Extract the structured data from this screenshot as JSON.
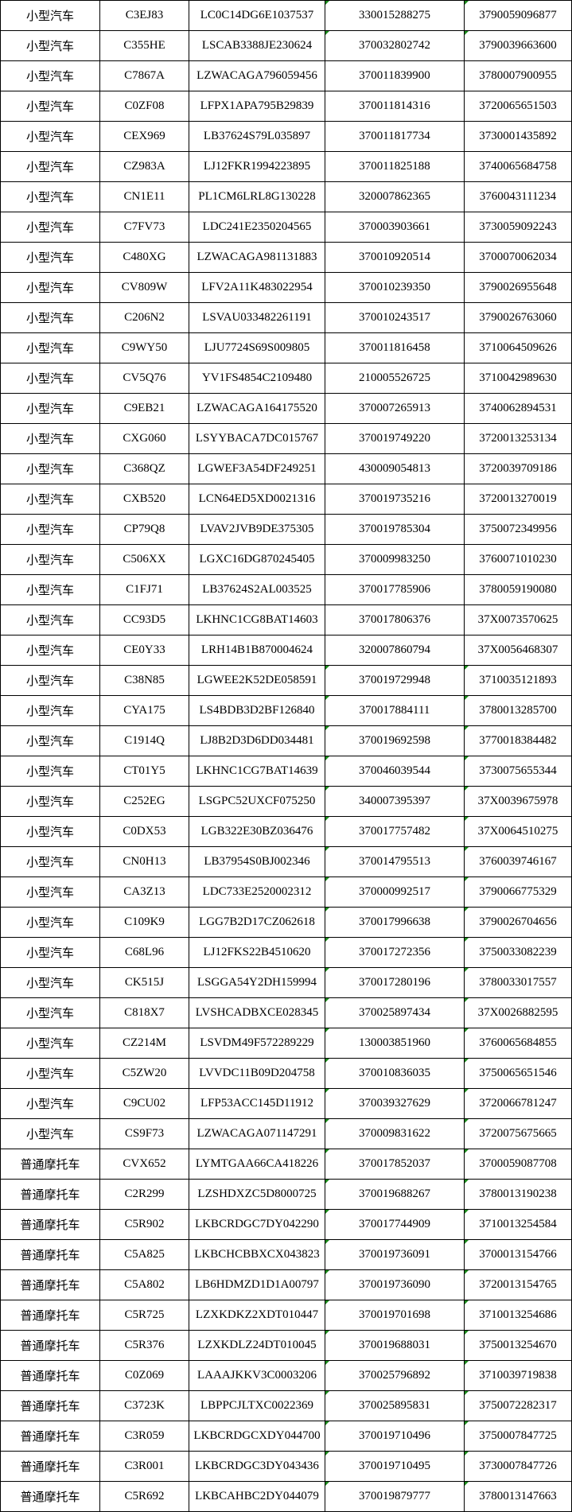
{
  "table": {
    "flag_color": "#1a8a1a",
    "rows": [
      {
        "type": "小型汽车",
        "plate": "C3EJ83",
        "vin": "LC0C14DG6E1037537",
        "id1": "330015288275",
        "id2": "3790059096877",
        "flag": true
      },
      {
        "type": "小型汽车",
        "plate": "C355HE",
        "vin": "LSCAB3388JE230624",
        "id1": "370032802742",
        "id2": "3790039663600",
        "flag": true
      },
      {
        "type": "小型汽车",
        "plate": "C7867A",
        "vin": "LZWACAGA796059456",
        "id1": "370011839900",
        "id2": "3780007900955",
        "flag": false
      },
      {
        "type": "小型汽车",
        "plate": "C0ZF08",
        "vin": "LFPX1APA795B29839",
        "id1": "370011814316",
        "id2": "3720065651503",
        "flag": false
      },
      {
        "type": "小型汽车",
        "plate": "CEX969",
        "vin": "LB37624S79L035897",
        "id1": "370011817734",
        "id2": "3730001435892",
        "flag": false
      },
      {
        "type": "小型汽车",
        "plate": "CZ983A",
        "vin": "LJ12FKR1994223895",
        "id1": "370011825188",
        "id2": "3740065684758",
        "flag": false
      },
      {
        "type": "小型汽车",
        "plate": "CN1E11",
        "vin": "PL1CM6LRL8G130228",
        "id1": "320007862365",
        "id2": "3760043111234",
        "flag": false
      },
      {
        "type": "小型汽车",
        "plate": "C7FV73",
        "vin": "LDC241E2350204565",
        "id1": "370003903661",
        "id2": "3730059092243",
        "flag": false
      },
      {
        "type": "小型汽车",
        "plate": "C480XG",
        "vin": "LZWACAGA981131883",
        "id1": "370010920514",
        "id2": "3700070062034",
        "flag": false
      },
      {
        "type": "小型汽车",
        "plate": "CV809W",
        "vin": "LFV2A11K483022954",
        "id1": "370010239350",
        "id2": "3790026955648",
        "flag": false
      },
      {
        "type": "小型汽车",
        "plate": "C206N2",
        "vin": "LSVAU033482261191",
        "id1": "370010243517",
        "id2": "3790026763060",
        "flag": false
      },
      {
        "type": "小型汽车",
        "plate": "C9WY50",
        "vin": "LJU7724S69S009805",
        "id1": "370011816458",
        "id2": "3710064509626",
        "flag": false
      },
      {
        "type": "小型汽车",
        "plate": "CV5Q76",
        "vin": "YV1FS4854C2109480",
        "id1": "210005526725",
        "id2": "3710042989630",
        "flag": false
      },
      {
        "type": "小型汽车",
        "plate": "C9EB21",
        "vin": "LZWACAGA164175520",
        "id1": "370007265913",
        "id2": "3740062894531",
        "flag": false
      },
      {
        "type": "小型汽车",
        "plate": "CXG060",
        "vin": "LSYYBACA7DC015767",
        "id1": "370019749220",
        "id2": "3720013253134",
        "flag": false
      },
      {
        "type": "小型汽车",
        "plate": "C368QZ",
        "vin": "LGWEF3A54DF249251",
        "id1": "430009054813",
        "id2": "3720039709186",
        "flag": false
      },
      {
        "type": "小型汽车",
        "plate": "CXB520",
        "vin": "LCN64ED5XD0021316",
        "id1": "370019735216",
        "id2": "3720013270019",
        "flag": false
      },
      {
        "type": "小型汽车",
        "plate": "CP79Q8",
        "vin": "LVAV2JVB9DE375305",
        "id1": "370019785304",
        "id2": "3750072349956",
        "flag": false
      },
      {
        "type": "小型汽车",
        "plate": "C506XX",
        "vin": "LGXC16DG870245405",
        "id1": "370009983250",
        "id2": "3760071010230",
        "flag": false
      },
      {
        "type": "小型汽车",
        "plate": "C1FJ71",
        "vin": "LB37624S2AL003525",
        "id1": "370017785906",
        "id2": "3780059190080",
        "flag": false
      },
      {
        "type": "小型汽车",
        "plate": "CC93D5",
        "vin": "LKHNC1CG8BAT14603",
        "id1": "370017806376",
        "id2": "37X0073570625",
        "flag": false
      },
      {
        "type": "小型汽车",
        "plate": "CE0Y33",
        "vin": "LRH14B1B870004624",
        "id1": "320007860794",
        "id2": "37X0056468307",
        "flag": false
      },
      {
        "type": "小型汽车",
        "plate": "C38N85",
        "vin": "LGWEE2K52DE058591",
        "id1": "370019729948",
        "id2": "3710035121893",
        "flag": true
      },
      {
        "type": "小型汽车",
        "plate": "CYA175",
        "vin": "LS4BDB3D2BF126840",
        "id1": "370017884111",
        "id2": "3780013285700",
        "flag": true
      },
      {
        "type": "小型汽车",
        "plate": "C1914Q",
        "vin": "LJ8B2D3D6DD034481",
        "id1": "370019692598",
        "id2": "3770018384482",
        "flag": true
      },
      {
        "type": "小型汽车",
        "plate": "CT01Y5",
        "vin": "LKHNC1CG7BAT14639",
        "id1": "370046039544",
        "id2": "3730075655344",
        "flag": true
      },
      {
        "type": "小型汽车",
        "plate": "C252EG",
        "vin": "LSGPC52UXCF075250",
        "id1": "340007395397",
        "id2": "37X0039675978",
        "flag": true
      },
      {
        "type": "小型汽车",
        "plate": "C0DX53",
        "vin": "LGB322E30BZ036476",
        "id1": "370017757482",
        "id2": "37X0064510275",
        "flag": true
      },
      {
        "type": "小型汽车",
        "plate": "CN0H13",
        "vin": "LB37954S0BJ002346",
        "id1": "370014795513",
        "id2": "3760039746167",
        "flag": true
      },
      {
        "type": "小型汽车",
        "plate": "CA3Z13",
        "vin": "LDC733E2520002312",
        "id1": "370000992517",
        "id2": "3790066775329",
        "flag": true
      },
      {
        "type": "小型汽车",
        "plate": "C109K9",
        "vin": "LGG7B2D17CZ062618",
        "id1": "370017996638",
        "id2": "3790026704656",
        "flag": true
      },
      {
        "type": "小型汽车",
        "plate": "C68L96",
        "vin": "LJ12FKS22B4510620",
        "id1": "370017272356",
        "id2": "3750033082239",
        "flag": true
      },
      {
        "type": "小型汽车",
        "plate": "CK515J",
        "vin": "LSGGA54Y2DH159994",
        "id1": "370017280196",
        "id2": "3780033017557",
        "flag": true
      },
      {
        "type": "小型汽车",
        "plate": "C818X7",
        "vin": "LVSHCADBXCE028345",
        "id1": "370025897434",
        "id2": "37X0026882595",
        "flag": true
      },
      {
        "type": "小型汽车",
        "plate": "CZ214M",
        "vin": "LSVDM49F572289229",
        "id1": "130003851960",
        "id2": "3760065684855",
        "flag": true
      },
      {
        "type": "小型汽车",
        "plate": "C5ZW20",
        "vin": "LVVDC11B09D204758",
        "id1": "370010836035",
        "id2": "3750065651546",
        "flag": true
      },
      {
        "type": "小型汽车",
        "plate": "C9CU02",
        "vin": "LFP53ACC145D11912",
        "id1": "370039327629",
        "id2": "3720066781247",
        "flag": true
      },
      {
        "type": "小型汽车",
        "plate": "CS9F73",
        "vin": "LZWACAGA071147291",
        "id1": "370009831622",
        "id2": "3720075675665",
        "flag": true
      },
      {
        "type": "普通摩托车",
        "plate": "CVX652",
        "vin": "LYMTGAA66CA418226",
        "id1": "370017852037",
        "id2": "3700059087708",
        "flag": true
      },
      {
        "type": "普通摩托车",
        "plate": "C2R299",
        "vin": "LZSHDXZC5D8000725",
        "id1": "370019688267",
        "id2": "3780013190238",
        "flag": true
      },
      {
        "type": "普通摩托车",
        "plate": "C5R902",
        "vin": "LKBCRDGC7DY042290",
        "id1": "370017744909",
        "id2": "3710013254584",
        "flag": true
      },
      {
        "type": "普通摩托车",
        "plate": "C5A825",
        "vin": "LKBCHCBBXCX043823",
        "id1": "370019736091",
        "id2": "3700013154766",
        "flag": true
      },
      {
        "type": "普通摩托车",
        "plate": "C5A802",
        "vin": "LB6HDMZD1D1A00797",
        "id1": "370019736090",
        "id2": "3720013154765",
        "flag": true
      },
      {
        "type": "普通摩托车",
        "plate": "C5R725",
        "vin": "LZXKDKZ2XDT010447",
        "id1": "370019701698",
        "id2": "3710013254686",
        "flag": true
      },
      {
        "type": "普通摩托车",
        "plate": "C5R376",
        "vin": "LZXKDLZ24DT010045",
        "id1": "370019688031",
        "id2": "3750013254670",
        "flag": true
      },
      {
        "type": "普通摩托车",
        "plate": "C0Z069",
        "vin": "LAAAJKKV3C0003206",
        "id1": "370025796892",
        "id2": "3710039719838",
        "flag": true
      },
      {
        "type": "普通摩托车",
        "plate": "C3723K",
        "vin": "LBPPCJLTXC0022369",
        "id1": "370025895831",
        "id2": "3750072282317",
        "flag": true
      },
      {
        "type": "普通摩托车",
        "plate": "C3R059",
        "vin": "LKBCRDGCXDY044700",
        "id1": "370019710496",
        "id2": "3750007847725",
        "flag": true
      },
      {
        "type": "普通摩托车",
        "plate": "C3R001",
        "vin": "LKBCRDGC3DY043436",
        "id1": "370019710495",
        "id2": "3730007847726",
        "flag": true
      },
      {
        "type": "普通摩托车",
        "plate": "C5R692",
        "vin": "LKBCAHBC2DY044079",
        "id1": "370019879777",
        "id2": "3780013147663",
        "flag": true
      }
    ]
  }
}
